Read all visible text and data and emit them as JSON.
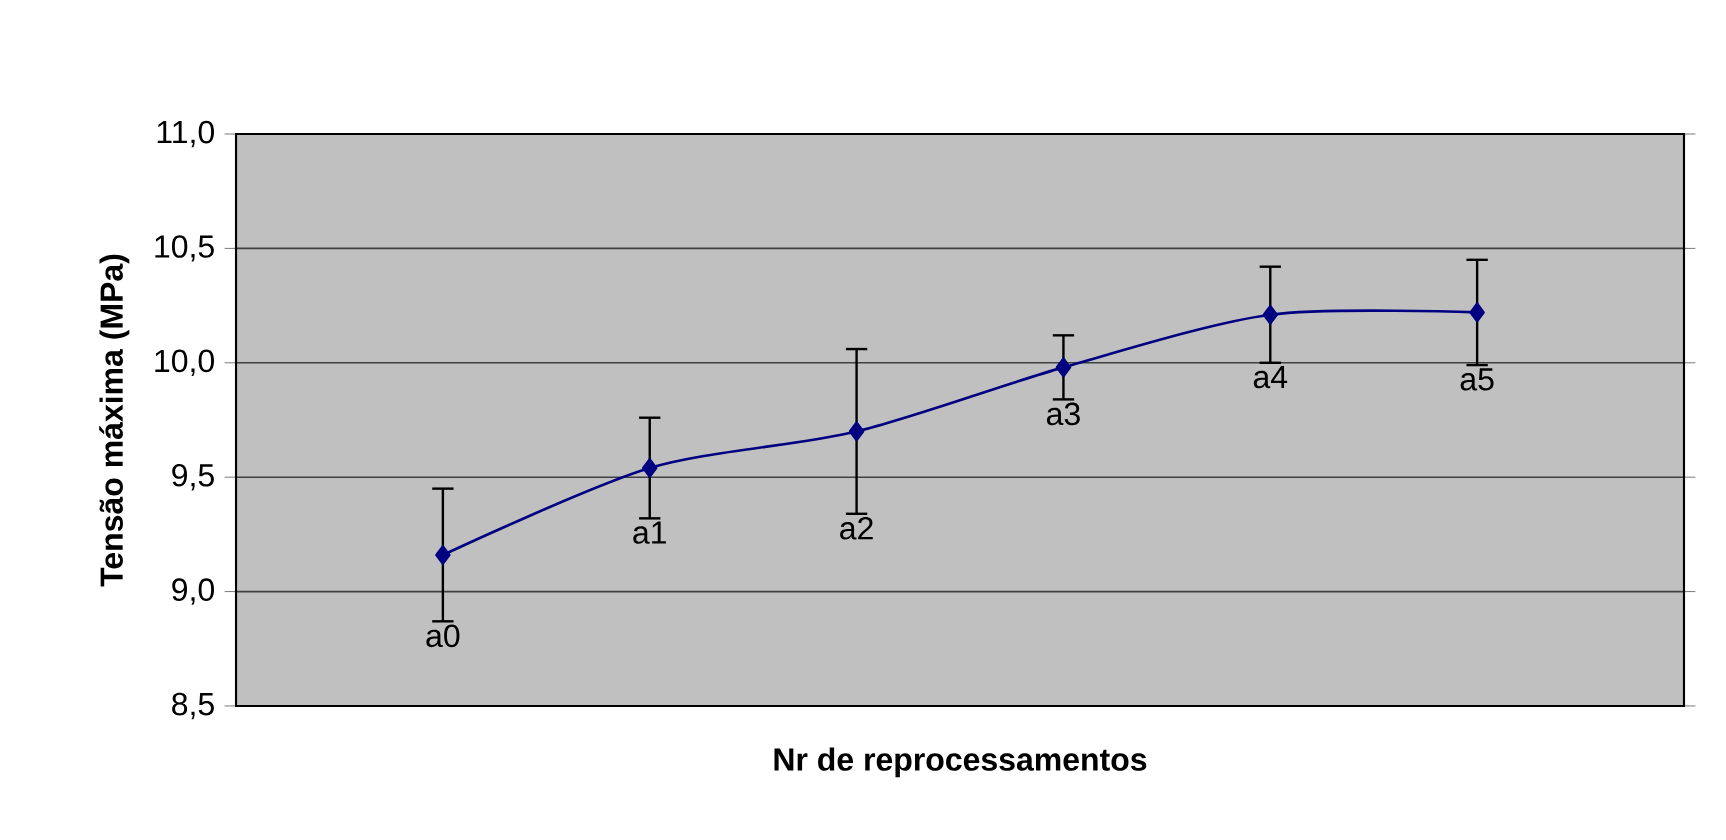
{
  "chart_data": {
    "type": "line",
    "xlabel": "Nr de reprocessamentos",
    "ylabel": "Tensão máxima (MPa)",
    "categories": [
      null,
      null,
      null,
      null,
      null,
      null
    ],
    "series": [
      {
        "color": "#000080",
        "values": [
          9.16,
          9.54,
          9.7,
          9.98,
          10.21,
          10.22
        ],
        "errors": [
          0.29,
          0.22,
          0.36,
          0.14,
          0.21,
          0.23
        ],
        "value_labels": [
          "a0",
          "a1",
          "a2",
          "a3",
          "a4",
          "a5"
        ]
      }
    ],
    "ylim": [
      8.5,
      11.0
    ],
    "yticks": [
      {
        "value": 8.5,
        "label": "8,5"
      },
      {
        "value": 9.0,
        "label": "9,0"
      },
      {
        "value": 9.5,
        "label": "9,5"
      },
      {
        "value": 10.0,
        "label": "10,0"
      },
      {
        "value": 10.5,
        "label": "10,5"
      },
      {
        "value": 11.0,
        "label": "11,0"
      }
    ],
    "grid": "y",
    "marker": "diamond",
    "line_style": "solid",
    "tick_labels": "y"
  }
}
